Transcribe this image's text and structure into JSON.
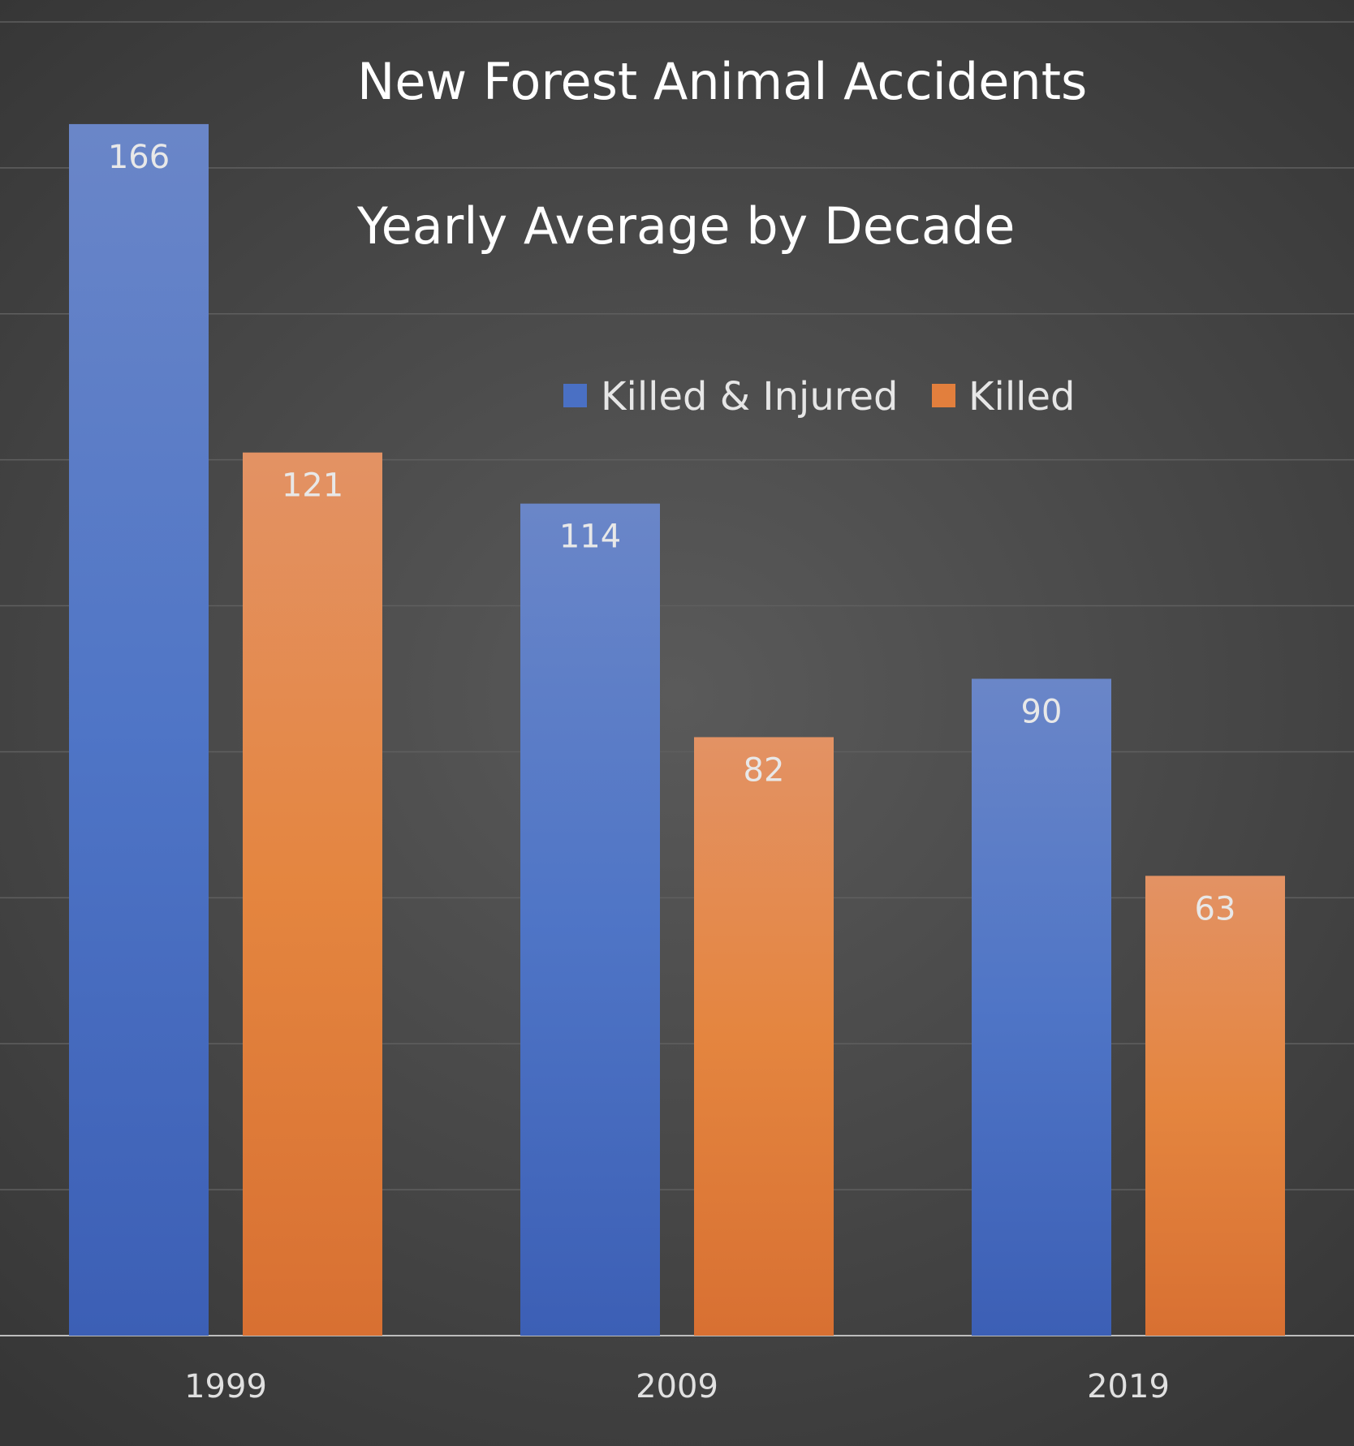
{
  "chart_data": {
    "type": "bar",
    "title": "New Forest Animal Accidents",
    "subtitle": "Yearly Average by Decade",
    "categories": [
      "1999",
      "2009",
      "2019"
    ],
    "series": [
      {
        "name": "Killed & Injured",
        "values": [
          166,
          114,
          90
        ]
      },
      {
        "name": "Killed",
        "values": [
          121,
          82,
          63
        ]
      }
    ],
    "ylim": [
      0,
      180
    ],
    "grid": true,
    "legend_position": "top-right",
    "colors": {
      "Killed & Injured": "#4a70c4",
      "Killed": "#e27f3d",
      "background": "#4a4a4a"
    }
  }
}
